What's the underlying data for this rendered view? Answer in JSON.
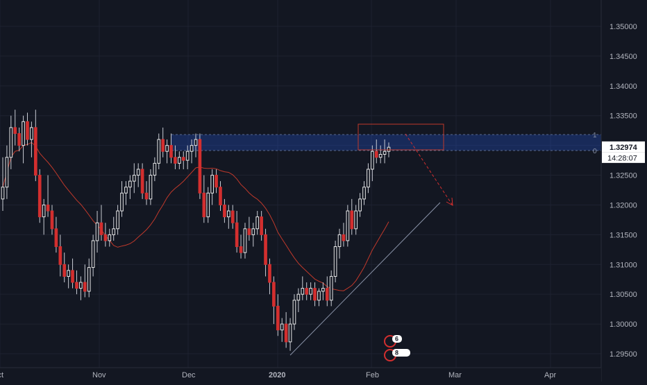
{
  "chart_data": {
    "type": "candlestick",
    "symbol_last_price": "1.32974",
    "countdown": "14:28:07",
    "price_axis_ticks": [
      "1.35000",
      "1.34500",
      "1.34000",
      "1.33500",
      "1.33000",
      "1.32500",
      "1.32000",
      "1.31500",
      "1.31000",
      "1.30500",
      "1.30000",
      "1.29500"
    ],
    "time_axis_ticks": [
      "Oct",
      "Nov",
      "Dec",
      "2020",
      "Feb",
      "Mar",
      "Apr"
    ],
    "ylim": [
      1.2935,
      1.3545
    ],
    "zone_levels": {
      "upper": "1",
      "lower": "0"
    },
    "event_badges": [
      "6",
      "8"
    ],
    "candles": [
      [
        1.321,
        1.328,
        1.319,
        1.323
      ],
      [
        1.323,
        1.33,
        1.321,
        1.328
      ],
      [
        1.328,
        1.335,
        1.326,
        1.333
      ],
      [
        1.333,
        1.336,
        1.33,
        1.332
      ],
      [
        1.332,
        1.333,
        1.329,
        1.33
      ],
      [
        1.33,
        1.335,
        1.327,
        1.334
      ],
      [
        1.334,
        1.3355,
        1.33,
        1.331
      ],
      [
        1.331,
        1.334,
        1.328,
        1.333
      ],
      [
        1.333,
        1.336,
        1.324,
        1.325
      ],
      [
        1.325,
        1.326,
        1.317,
        1.318
      ],
      [
        1.318,
        1.321,
        1.315,
        1.32
      ],
      [
        1.32,
        1.325,
        1.318,
        1.319
      ],
      [
        1.319,
        1.32,
        1.315,
        1.316
      ],
      [
        1.316,
        1.318,
        1.312,
        1.313
      ],
      [
        1.313,
        1.315,
        1.308,
        1.31
      ],
      [
        1.31,
        1.312,
        1.307,
        1.308
      ],
      [
        1.308,
        1.31,
        1.306,
        1.309
      ],
      [
        1.309,
        1.311,
        1.306,
        1.307
      ],
      [
        1.307,
        1.309,
        1.305,
        1.306
      ],
      [
        1.306,
        1.308,
        1.304,
        1.307
      ],
      [
        1.307,
        1.31,
        1.3045,
        1.3055
      ],
      [
        1.3055,
        1.311,
        1.3045,
        1.3095
      ],
      [
        1.3095,
        1.315,
        1.308,
        1.314
      ],
      [
        1.314,
        1.319,
        1.312,
        1.317
      ],
      [
        1.317,
        1.32,
        1.314,
        1.315
      ],
      [
        1.315,
        1.317,
        1.313,
        1.314
      ],
      [
        1.314,
        1.316,
        1.313,
        1.315
      ],
      [
        1.315,
        1.318,
        1.314,
        1.316
      ],
      [
        1.316,
        1.32,
        1.315,
        1.319
      ],
      [
        1.319,
        1.324,
        1.318,
        1.322
      ],
      [
        1.322,
        1.324,
        1.32,
        1.323
      ],
      [
        1.323,
        1.325,
        1.321,
        1.324
      ],
      [
        1.324,
        1.327,
        1.322,
        1.325
      ],
      [
        1.325,
        1.327,
        1.323,
        1.326
      ],
      [
        1.326,
        1.327,
        1.321,
        1.322
      ],
      [
        1.322,
        1.324,
        1.32,
        1.321
      ],
      [
        1.321,
        1.326,
        1.32,
        1.325
      ],
      [
        1.325,
        1.328,
        1.324,
        1.327
      ],
      [
        1.327,
        1.332,
        1.326,
        1.331
      ],
      [
        1.331,
        1.333,
        1.328,
        1.329
      ],
      [
        1.329,
        1.331,
        1.327,
        1.33
      ],
      [
        1.33,
        1.332,
        1.327,
        1.328
      ],
      [
        1.328,
        1.33,
        1.326,
        1.327
      ],
      [
        1.327,
        1.329,
        1.326,
        1.328
      ],
      [
        1.328,
        1.329,
        1.326,
        1.3275
      ],
      [
        1.3275,
        1.33,
        1.326,
        1.329
      ],
      [
        1.329,
        1.331,
        1.327,
        1.33
      ],
      [
        1.33,
        1.332,
        1.328,
        1.331
      ],
      [
        1.331,
        1.332,
        1.321,
        1.322
      ],
      [
        1.322,
        1.325,
        1.317,
        1.318
      ],
      [
        1.318,
        1.323,
        1.317,
        1.322
      ],
      [
        1.322,
        1.326,
        1.32,
        1.325
      ],
      [
        1.325,
        1.326,
        1.322,
        1.323
      ],
      [
        1.323,
        1.324,
        1.319,
        1.32
      ],
      [
        1.32,
        1.321,
        1.317,
        1.318
      ],
      [
        1.318,
        1.32,
        1.316,
        1.319
      ],
      [
        1.319,
        1.32,
        1.316,
        1.317
      ],
      [
        1.317,
        1.319,
        1.312,
        1.313
      ],
      [
        1.313,
        1.315,
        1.311,
        1.312
      ],
      [
        1.312,
        1.317,
        1.311,
        1.316
      ],
      [
        1.316,
        1.318,
        1.314,
        1.315
      ],
      [
        1.315,
        1.317,
        1.313,
        1.316
      ],
      [
        1.316,
        1.319,
        1.315,
        1.318
      ],
      [
        1.318,
        1.319,
        1.314,
        1.315
      ],
      [
        1.315,
        1.316,
        1.308,
        1.31
      ],
      [
        1.31,
        1.311,
        1.305,
        1.307
      ],
      [
        1.307,
        1.308,
        1.3,
        1.303
      ],
      [
        1.303,
        1.305,
        1.298,
        1.299
      ],
      [
        1.299,
        1.301,
        1.297,
        1.3
      ],
      [
        1.3,
        1.302,
        1.296,
        1.297
      ],
      [
        1.297,
        1.301,
        1.2955,
        1.3
      ],
      [
        1.3,
        1.305,
        1.299,
        1.304
      ],
      [
        1.304,
        1.306,
        1.302,
        1.305
      ],
      [
        1.305,
        1.308,
        1.304,
        1.306
      ],
      [
        1.306,
        1.307,
        1.304,
        1.305
      ],
      [
        1.305,
        1.307,
        1.304,
        1.306
      ],
      [
        1.306,
        1.307,
        1.303,
        1.304
      ],
      [
        1.304,
        1.306,
        1.303,
        1.3055
      ],
      [
        1.3055,
        1.307,
        1.304,
        1.306
      ],
      [
        1.306,
        1.308,
        1.303,
        1.304
      ],
      [
        1.304,
        1.309,
        1.303,
        1.308
      ],
      [
        1.308,
        1.314,
        1.307,
        1.313
      ],
      [
        1.313,
        1.316,
        1.311,
        1.315
      ],
      [
        1.315,
        1.317,
        1.313,
        1.314
      ],
      [
        1.314,
        1.32,
        1.313,
        1.319
      ],
      [
        1.319,
        1.321,
        1.315,
        1.316
      ],
      [
        1.316,
        1.32,
        1.315,
        1.319
      ],
      [
        1.319,
        1.322,
        1.318,
        1.321
      ],
      [
        1.321,
        1.324,
        1.32,
        1.323
      ],
      [
        1.323,
        1.327,
        1.322,
        1.326
      ],
      [
        1.326,
        1.33,
        1.324,
        1.329
      ],
      [
        1.329,
        1.331,
        1.327,
        1.328
      ],
      [
        1.328,
        1.33,
        1.327,
        1.3285
      ],
      [
        1.3285,
        1.331,
        1.327,
        1.329
      ],
      [
        1.329,
        1.3305,
        1.328,
        1.3297
      ]
    ]
  }
}
